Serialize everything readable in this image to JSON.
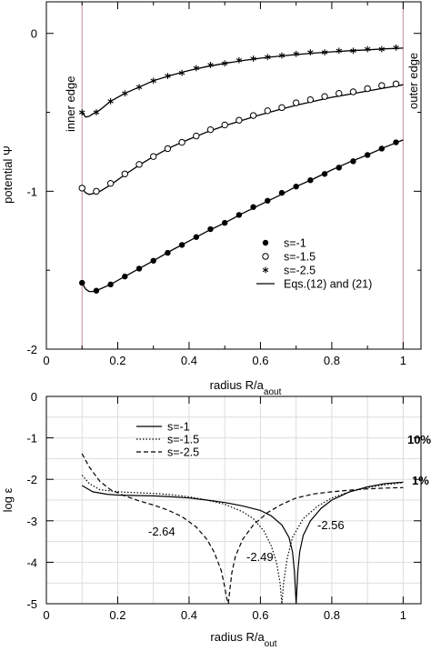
{
  "colors": {
    "edge_line": "#c9a0a8",
    "grid": "#dddddd",
    "axis": "#000000"
  },
  "chart_data": [
    {
      "type": "line",
      "xlabel": "radius R/a",
      "xlabel_sub": "aout",
      "ylabel": "potential Ψ",
      "xlim": [
        0,
        1.05
      ],
      "ylim": [
        -2,
        0.2
      ],
      "x_ticks": [
        "0",
        "0.2",
        "0.4",
        "0.6",
        "0.8",
        "1"
      ],
      "y_ticks": [
        "0",
        "-1",
        "-2"
      ],
      "grid": false,
      "legend_position": "lower-right",
      "annotations": {
        "inner_edge": "inner edge",
        "outer_edge": "outer edge"
      },
      "vertical_lines_x": [
        0.1,
        1.0
      ],
      "series": [
        {
          "name": "s=-1",
          "marker": "filled-circle",
          "x": [
            0.1,
            0.14,
            0.18,
            0.22,
            0.26,
            0.3,
            0.34,
            0.38,
            0.42,
            0.46,
            0.5,
            0.54,
            0.58,
            0.62,
            0.66,
            0.7,
            0.74,
            0.78,
            0.82,
            0.86,
            0.9,
            0.94,
            0.98
          ],
          "y": [
            -1.58,
            -1.63,
            -1.59,
            -1.54,
            -1.49,
            -1.44,
            -1.39,
            -1.34,
            -1.29,
            -1.24,
            -1.2,
            -1.15,
            -1.1,
            -1.06,
            -1.01,
            -0.97,
            -0.93,
            -0.89,
            -0.85,
            -0.81,
            -0.77,
            -0.73,
            -0.69
          ]
        },
        {
          "name": "s=-1.5",
          "marker": "open-circle",
          "x": [
            0.1,
            0.14,
            0.18,
            0.22,
            0.26,
            0.3,
            0.34,
            0.38,
            0.42,
            0.46,
            0.5,
            0.54,
            0.58,
            0.62,
            0.66,
            0.7,
            0.74,
            0.78,
            0.82,
            0.86,
            0.9,
            0.94,
            0.98
          ],
          "y": [
            -0.98,
            -1.0,
            -0.95,
            -0.89,
            -0.83,
            -0.78,
            -0.73,
            -0.69,
            -0.65,
            -0.61,
            -0.58,
            -0.55,
            -0.52,
            -0.49,
            -0.47,
            -0.44,
            -0.42,
            -0.4,
            -0.38,
            -0.37,
            -0.35,
            -0.33,
            -0.32
          ]
        },
        {
          "name": "s=-2.5",
          "marker": "star",
          "x": [
            0.1,
            0.14,
            0.18,
            0.22,
            0.26,
            0.3,
            0.34,
            0.38,
            0.42,
            0.46,
            0.5,
            0.54,
            0.58,
            0.62,
            0.66,
            0.7,
            0.74,
            0.78,
            0.82,
            0.86,
            0.9,
            0.94,
            0.98
          ],
          "y": [
            -0.5,
            -0.5,
            -0.43,
            -0.38,
            -0.34,
            -0.3,
            -0.27,
            -0.25,
            -0.22,
            -0.2,
            -0.19,
            -0.17,
            -0.16,
            -0.15,
            -0.14,
            -0.13,
            -0.12,
            -0.12,
            -0.11,
            -0.11,
            -0.1,
            -0.1,
            -0.09
          ]
        },
        {
          "name": "Eqs.(12) and (21)",
          "marker": "solid-line"
        }
      ],
      "curves": [
        {
          "x": [
            0.1,
            0.11,
            0.12,
            0.13,
            0.15,
            0.18,
            0.22,
            0.26,
            0.3,
            0.35,
            0.4,
            0.45,
            0.5,
            0.55,
            0.6,
            0.65,
            0.7,
            0.75,
            0.8,
            0.85,
            0.9,
            0.95,
            1.0
          ],
          "y": [
            -1.58,
            -1.62,
            -1.635,
            -1.635,
            -1.62,
            -1.59,
            -1.54,
            -1.49,
            -1.44,
            -1.375,
            -1.315,
            -1.255,
            -1.2,
            -1.14,
            -1.085,
            -1.03,
            -0.97,
            -0.92,
            -0.865,
            -0.815,
            -0.77,
            -0.72,
            -0.675
          ]
        },
        {
          "x": [
            0.1,
            0.11,
            0.12,
            0.13,
            0.15,
            0.18,
            0.22,
            0.26,
            0.3,
            0.35,
            0.4,
            0.45,
            0.5,
            0.55,
            0.6,
            0.65,
            0.7,
            0.75,
            0.8,
            0.85,
            0.9,
            0.95,
            1.0
          ],
          "y": [
            -0.98,
            -1.01,
            -1.02,
            -1.015,
            -1.0,
            -0.96,
            -0.895,
            -0.835,
            -0.78,
            -0.72,
            -0.67,
            -0.625,
            -0.585,
            -0.55,
            -0.515,
            -0.485,
            -0.455,
            -0.43,
            -0.405,
            -0.385,
            -0.365,
            -0.345,
            -0.325
          ]
        },
        {
          "x": [
            0.1,
            0.11,
            0.12,
            0.13,
            0.15,
            0.18,
            0.22,
            0.26,
            0.3,
            0.35,
            0.4,
            0.45,
            0.5,
            0.55,
            0.6,
            0.65,
            0.7,
            0.75,
            0.8,
            0.85,
            0.9,
            0.95,
            1.0
          ],
          "y": [
            -0.5,
            -0.53,
            -0.525,
            -0.51,
            -0.485,
            -0.43,
            -0.38,
            -0.34,
            -0.3,
            -0.265,
            -0.235,
            -0.21,
            -0.19,
            -0.172,
            -0.157,
            -0.145,
            -0.134,
            -0.125,
            -0.117,
            -0.11,
            -0.104,
            -0.098,
            -0.093
          ]
        }
      ]
    },
    {
      "type": "line",
      "xlabel": "radius R/a",
      "xlabel_sub": "out",
      "ylabel": "log ε",
      "xlim": [
        0,
        1.05
      ],
      "ylim": [
        -5,
        0
      ],
      "x_ticks": [
        "0",
        "0.2",
        "0.4",
        "0.6",
        "0.8",
        "1"
      ],
      "y_ticks": [
        "0",
        "-1",
        "-2",
        "-3",
        "-4",
        "-5"
      ],
      "grid": true,
      "legend_position": "top-left",
      "annotations": {
        "right_labels": [
          {
            "text": "10%",
            "y": -1
          },
          {
            "text": "1%",
            "y": -2
          }
        ],
        "minima": [
          {
            "text": "-2.64",
            "x": 0.51
          },
          {
            "text": "-2.49",
            "x": 0.66
          },
          {
            "text": "-2.56",
            "x": 0.7
          }
        ]
      },
      "series": [
        {
          "name": "s=-1",
          "line_style": "solid",
          "x": [
            0.1,
            0.13,
            0.17,
            0.2,
            0.25,
            0.3,
            0.35,
            0.4,
            0.45,
            0.5,
            0.55,
            0.6,
            0.63,
            0.66,
            0.68,
            0.69,
            0.695,
            0.7,
            0.705,
            0.71,
            0.72,
            0.74,
            0.77,
            0.8,
            0.85,
            0.9,
            0.95,
            1.0
          ],
          "y": [
            -2.15,
            -2.3,
            -2.36,
            -2.38,
            -2.39,
            -2.4,
            -2.42,
            -2.45,
            -2.5,
            -2.56,
            -2.64,
            -2.75,
            -2.88,
            -3.1,
            -3.4,
            -3.75,
            -4.2,
            -5.0,
            -4.2,
            -3.75,
            -3.35,
            -3.0,
            -2.7,
            -2.5,
            -2.3,
            -2.18,
            -2.1,
            -2.07
          ]
        },
        {
          "name": "s=-1.5",
          "line_style": "dotted",
          "x": [
            0.1,
            0.12,
            0.15,
            0.2,
            0.25,
            0.3,
            0.35,
            0.4,
            0.45,
            0.5,
            0.55,
            0.58,
            0.61,
            0.63,
            0.645,
            0.655,
            0.66,
            0.665,
            0.675,
            0.69,
            0.72,
            0.76,
            0.8,
            0.85,
            0.9,
            0.95,
            1.0
          ],
          "y": [
            -1.9,
            -2.1,
            -2.25,
            -2.3,
            -2.32,
            -2.34,
            -2.37,
            -2.42,
            -2.5,
            -2.6,
            -2.78,
            -2.95,
            -3.25,
            -3.6,
            -4.0,
            -4.5,
            -5.0,
            -4.5,
            -3.9,
            -3.4,
            -2.95,
            -2.65,
            -2.45,
            -2.3,
            -2.2,
            -2.13,
            -2.08
          ]
        },
        {
          "name": "s=-2.5",
          "line_style": "dashed",
          "x": [
            0.1,
            0.12,
            0.15,
            0.18,
            0.22,
            0.26,
            0.3,
            0.34,
            0.38,
            0.42,
            0.45,
            0.47,
            0.49,
            0.5,
            0.505,
            0.51,
            0.515,
            0.52,
            0.53,
            0.55,
            0.58,
            0.62,
            0.66,
            0.7,
            0.75,
            0.8,
            0.85,
            0.9,
            0.95,
            1.0
          ],
          "y": [
            -1.38,
            -1.7,
            -2.05,
            -2.25,
            -2.4,
            -2.52,
            -2.62,
            -2.74,
            -2.9,
            -3.15,
            -3.45,
            -3.75,
            -4.2,
            -4.6,
            -4.85,
            -5.0,
            -4.6,
            -4.25,
            -3.85,
            -3.45,
            -3.1,
            -2.8,
            -2.6,
            -2.45,
            -2.35,
            -2.3,
            -2.26,
            -2.23,
            -2.21,
            -2.2
          ]
        }
      ]
    }
  ]
}
